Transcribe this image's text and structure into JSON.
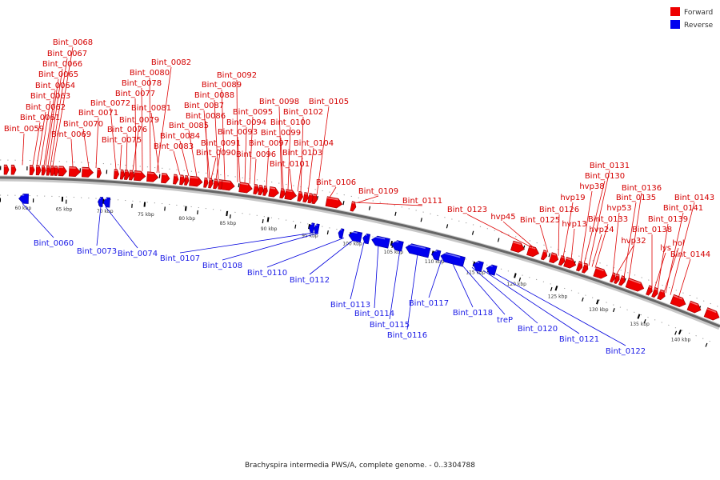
{
  "legend": {
    "forward": {
      "label": "Forward",
      "color": "#ee0000"
    },
    "reverse": {
      "label": "Reverse",
      "color": "#0000ee"
    }
  },
  "caption": "Brachyspira intermedia PWS/A, complete genome. - 0..3304788",
  "ticks": [
    "60 kbp",
    "65 kbp",
    "70 kbp",
    "75 kbp",
    "80 kbp",
    "85 kbp",
    "90 kbp",
    "95 kbp",
    "100 kbp",
    "105 kbp",
    "110 kbp",
    "115 kbp",
    "120 kbp",
    "125 kbp",
    "130 kbp",
    "135 kbp",
    "140 kbp"
  ],
  "forward_labels": [
    "Bint_0068",
    "Bint_0067",
    "Bint_0066",
    "Bint_0065",
    "Bint_0064",
    "Bint_0063",
    "Bint_0062",
    "Bint_0061",
    "Bint_0059",
    "Bint_0071",
    "Bint_0070",
    "Bint_0069",
    "Bint_0072",
    "Bint_0082",
    "Bint_0080",
    "Bint_0078",
    "Bint_0077",
    "Bint_0081",
    "Bint_0079",
    "Bint_0076",
    "Bint_0075",
    "Bint_0092",
    "Bint_0089",
    "Bint_0088",
    "Bint_0087",
    "Bint_0086",
    "Bint_0085",
    "Bint_0084",
    "Bint_0083",
    "Bint_0095",
    "Bint_0094",
    "Bint_0093",
    "Bint_0091",
    "Bint_0090",
    "Bint_0098",
    "Bint_0105",
    "Bint_0102",
    "Bint_0100",
    "Bint_0099",
    "Bint_0097",
    "Bint_0096",
    "Bint_0104",
    "Bint_0103",
    "Bint_0101",
    "Bint_0106",
    "Bint_0109",
    "Bint_0111",
    "Bint_0123",
    "hvp45",
    "Bint_0125",
    "Bint_0126",
    "hvp19",
    "hvp13",
    "Bint_0131",
    "Bint_0130",
    "hvp38",
    "hvp53",
    "hvp24",
    "Bint_0133",
    "hvp32",
    "Bint_0136",
    "Bint_0135",
    "Bint_0143",
    "Bint_0141",
    "Bint_0139",
    "Bint_0138",
    "lys",
    "hol",
    "Bint_0144"
  ],
  "reverse_labels": [
    "Bint_0060",
    "Bint_0073",
    "Bint_0074",
    "Bint_0107",
    "Bint_0108",
    "Bint_0110",
    "Bint_0112",
    "Bint_0113",
    "Bint_0114",
    "Bint_0115",
    "Bint_0116",
    "Bint_0117",
    "Bint_0118",
    "treP",
    "Bint_0120",
    "Bint_0121",
    "Bint_0122"
  ]
}
